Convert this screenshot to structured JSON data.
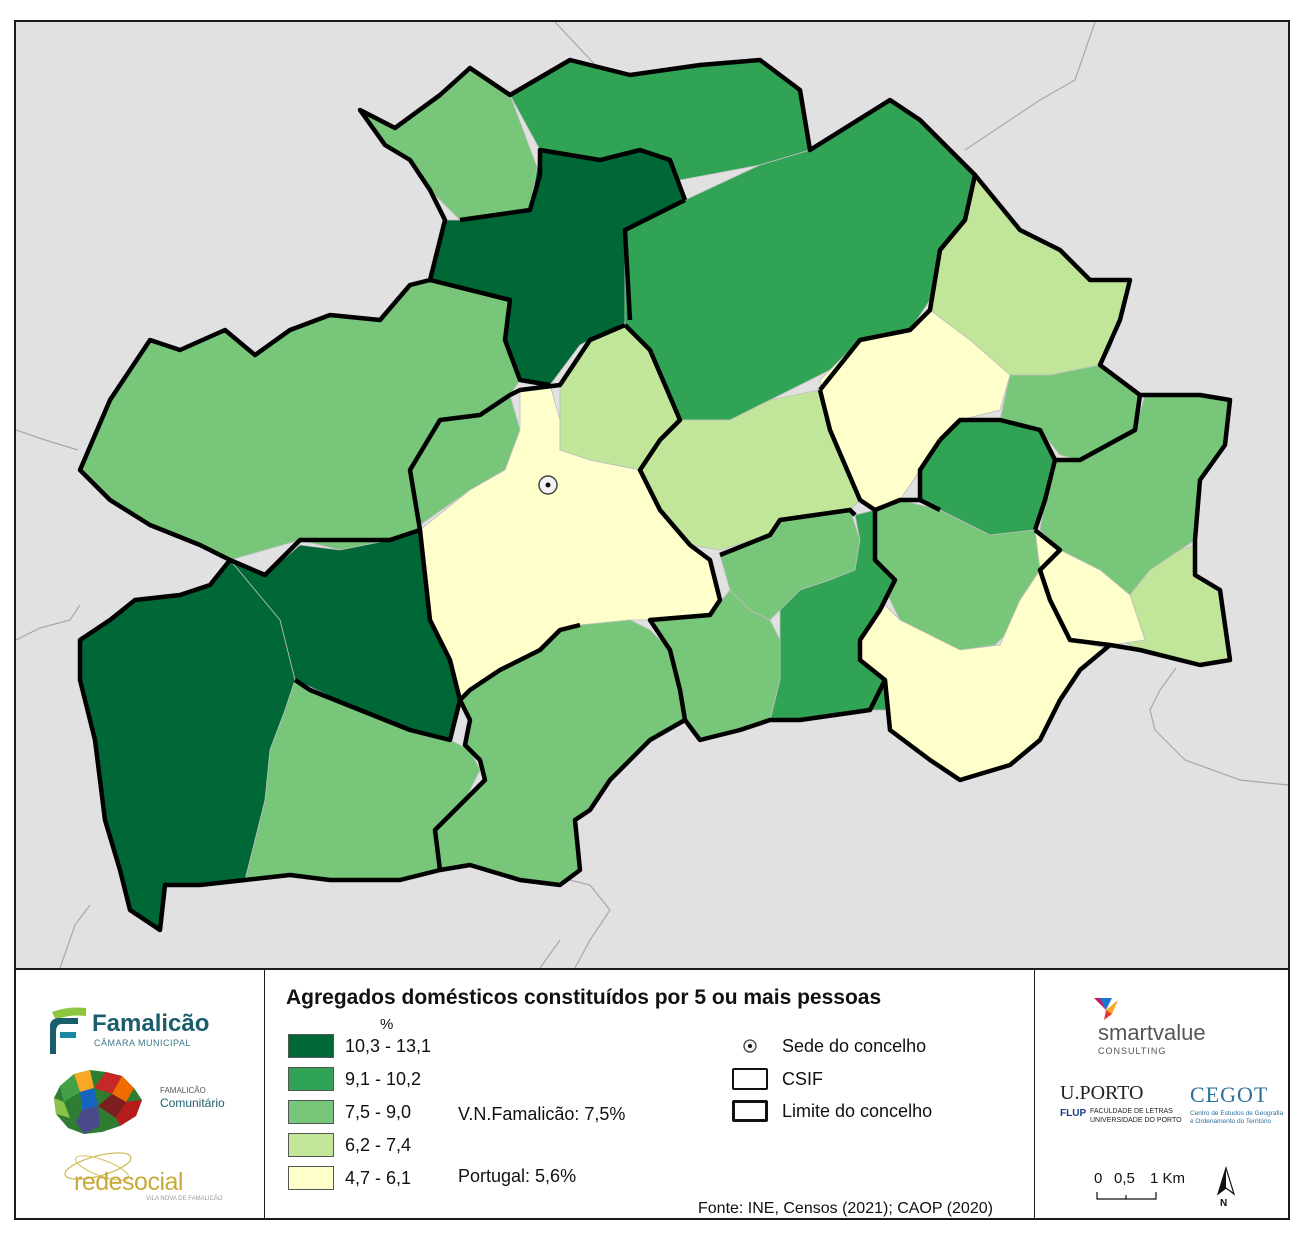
{
  "legend": {
    "title": "Agregados domésticos constituídos por 5 ou mais pessoas",
    "unit": "%",
    "classes": [
      {
        "label": "10,3 - 13,1",
        "color": "#006837"
      },
      {
        "label": "9,1 - 10,2",
        "color": "#31a354"
      },
      {
        "label": "7,5 - 9,0",
        "color": "#78c679"
      },
      {
        "label": "6,2 - 7,4",
        "color": "#c2e699"
      },
      {
        "label": "4,7 - 6,1",
        "color": "#ffffcc"
      }
    ],
    "stats": {
      "vnf": "V.N.Famalicão: 7,5%",
      "portugal": "Portugal: 5,6%"
    },
    "symbols": {
      "sede": "Sede do concelho",
      "csif": "CSIF",
      "limite": "Limite do concelho"
    },
    "source": "Fonte: INE, Censos (2021); CAOP (2020)"
  },
  "logos": {
    "famalicao_name": "Famalicão",
    "famalicao_sub": "CÂMARA MUNICIPAL",
    "comunitario_top": "FAMALICÃO",
    "comunitario_main": "Comunitário",
    "redesocial_main": "redesocial",
    "redesocial_sub": "VILA NOVA DE FAMALICÃO",
    "smartvalue_main": "smartvalue",
    "smartvalue_sub": "CONSULTING",
    "uporto_main": "U.PORTO",
    "flup_tag": "FLUP",
    "flup_line1": "FACULDADE DE LETRAS",
    "flup_line2": "UNIVERSIDADE DO PORTO",
    "cegot_main": "CEGOT",
    "cegot_line1": "Centro de Estudos de Geografia",
    "cegot_line2": "e Ordenamento do Território"
  },
  "scalebar": {
    "ticks": [
      "0",
      "0,5",
      "1 Km"
    ],
    "north": "N"
  },
  "colors": {
    "background": "#e1e1e1",
    "outside_border": "#a8a8a8",
    "csif_border": "#000000",
    "internal_border": "#bdbdbd"
  }
}
